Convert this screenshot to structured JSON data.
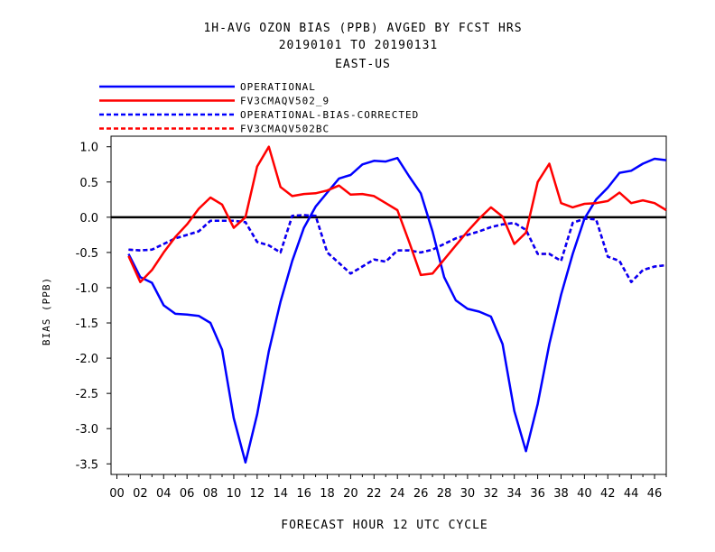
{
  "chart_data": {
    "type": "line",
    "title": [
      "1H-AVG OZON BIAS (PPB)  AVGED BY FCST HRS",
      "20190101 TO 20190131",
      "EAST-US"
    ],
    "xlabel": "FORECAST HOUR  12 UTC CYCLE",
    "ylabel": "BIAS (PPB)",
    "xlim": [
      -0.5,
      47
    ],
    "ylim": [
      -3.65,
      1.15
    ],
    "x_ticks": [
      "00",
      "02",
      "04",
      "06",
      "08",
      "10",
      "12",
      "14",
      "16",
      "18",
      "20",
      "22",
      "24",
      "26",
      "28",
      "30",
      "32",
      "34",
      "36",
      "38",
      "40",
      "42",
      "44",
      "46"
    ],
    "y_ticks": [
      "1.0",
      "0.5",
      "0.0",
      "-0.5",
      "-1.0",
      "-1.5",
      "-2.0",
      "-2.5",
      "-3.0",
      "-3.5"
    ],
    "y_tick_values": [
      1.0,
      0.5,
      0.0,
      -0.5,
      -1.0,
      -1.5,
      -2.0,
      -2.5,
      -3.0,
      -3.5
    ],
    "x": [
      1,
      2,
      3,
      4,
      5,
      6,
      7,
      8,
      9,
      10,
      11,
      12,
      13,
      14,
      15,
      16,
      17,
      18,
      19,
      20,
      21,
      22,
      23,
      24,
      25,
      26,
      27,
      28,
      29,
      30,
      31,
      32,
      33,
      34,
      35,
      36,
      37,
      38,
      39,
      40,
      41,
      42,
      43,
      44,
      45,
      46,
      47
    ],
    "zero_line": 0,
    "legend_position": "top-left",
    "series": [
      {
        "name": "OPERATIONAL",
        "color": "#0000ff",
        "dash": "solid",
        "values": [
          -0.52,
          -0.85,
          -0.93,
          -1.25,
          -1.37,
          -1.38,
          -1.4,
          -1.5,
          -1.88,
          -2.85,
          -3.48,
          -2.8,
          -1.9,
          -1.2,
          -0.62,
          -0.15,
          0.15,
          0.35,
          0.55,
          0.6,
          0.75,
          0.8,
          0.79,
          0.84,
          0.58,
          0.34,
          -0.2,
          -0.85,
          -1.18,
          -1.3,
          -1.34,
          -1.41,
          -1.8,
          -2.75,
          -3.32,
          -2.65,
          -1.8,
          -1.1,
          -0.52,
          -0.02,
          0.25,
          0.42,
          0.63,
          0.66,
          0.76,
          0.83,
          0.81
        ]
      },
      {
        "name": "FV3CMAQV502_9",
        "color": "#ff0000",
        "dash": "solid",
        "values": [
          -0.55,
          -0.92,
          -0.75,
          -0.5,
          -0.28,
          -0.1,
          0.12,
          0.28,
          0.18,
          -0.15,
          0.0,
          0.72,
          1.0,
          0.43,
          0.3,
          0.33,
          0.34,
          0.38,
          0.45,
          0.32,
          0.33,
          0.3,
          0.2,
          0.1,
          -0.35,
          -0.82,
          -0.8,
          -0.6,
          -0.4,
          -0.2,
          -0.02,
          0.14,
          0.01,
          -0.38,
          -0.22,
          0.5,
          0.76,
          0.2,
          0.14,
          0.19,
          0.2,
          0.23,
          0.35,
          0.2,
          0.24,
          0.2,
          0.1
        ]
      },
      {
        "name": "OPERATIONAL-BIAS-CORRECTED",
        "color": "#0000ff",
        "dash": "dashed",
        "values": [
          -0.46,
          -0.47,
          -0.46,
          -0.38,
          -0.3,
          -0.25,
          -0.2,
          -0.05,
          -0.05,
          -0.05,
          -0.07,
          -0.35,
          -0.4,
          -0.5,
          0.02,
          0.03,
          0.02,
          -0.5,
          -0.65,
          -0.8,
          -0.7,
          -0.6,
          -0.63,
          -0.47,
          -0.47,
          -0.5,
          -0.46,
          -0.38,
          -0.3,
          -0.25,
          -0.2,
          -0.14,
          -0.1,
          -0.08,
          -0.18,
          -0.52,
          -0.52,
          -0.62,
          -0.08,
          -0.02,
          -0.03,
          -0.56,
          -0.62,
          -0.92,
          -0.75,
          -0.7,
          -0.68
        ]
      },
      {
        "name": "FV3CMAQV502BC",
        "color": "#ff0000",
        "dash": "dashed",
        "values": [
          -0.46,
          -0.47,
          -0.46,
          -0.38,
          -0.3,
          -0.25,
          -0.2,
          -0.05,
          -0.05,
          -0.05,
          -0.07,
          -0.35,
          -0.4,
          -0.5,
          0.02,
          0.03,
          0.02,
          -0.5,
          -0.65,
          -0.8,
          -0.7,
          -0.6,
          -0.63,
          -0.47,
          -0.47,
          -0.5,
          -0.46,
          -0.38,
          -0.3,
          -0.25,
          -0.2,
          -0.14,
          -0.1,
          -0.08,
          -0.18,
          -0.52,
          -0.52,
          -0.62,
          -0.08,
          -0.02,
          -0.03,
          -0.56,
          -0.62,
          -0.92,
          -0.75,
          -0.7,
          -0.68
        ]
      }
    ]
  }
}
